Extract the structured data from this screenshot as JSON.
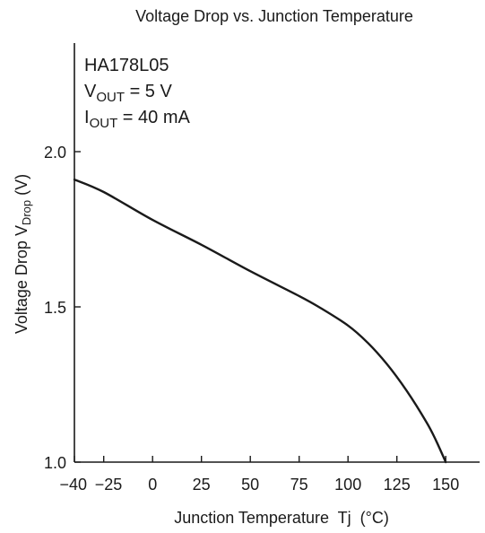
{
  "chart_data": {
    "type": "line",
    "title": "Voltage Drop vs. Junction Temperature",
    "xlabel": "Junction Temperature  Tj  (°C)",
    "ylabel": {
      "prefix": "Voltage Drop  V",
      "sub": "Drop",
      "suffix": "  (V)"
    },
    "xlim": [
      -40,
      162
    ],
    "ylim": [
      1.0,
      2.2
    ],
    "x_ticks": [
      {
        "value": -40,
        "label": "−40"
      },
      {
        "value": -25,
        "label": "−25"
      },
      {
        "value": 0,
        "label": "0"
      },
      {
        "value": 25,
        "label": "25"
      },
      {
        "value": 50,
        "label": "50"
      },
      {
        "value": 75,
        "label": "75"
      },
      {
        "value": 100,
        "label": "100"
      },
      {
        "value": 125,
        "label": "125"
      },
      {
        "value": 150,
        "label": "150"
      }
    ],
    "y_ticks": [
      {
        "value": 1.0,
        "label": "1.0"
      },
      {
        "value": 1.5,
        "label": "1.5"
      },
      {
        "value": 2.0,
        "label": "2.0"
      }
    ],
    "grid": false,
    "annotation": {
      "part": "HA178L05",
      "lines": [
        {
          "main": "V",
          "sub": "OUT",
          "rest": " = 5 V"
        },
        {
          "main": "I",
          "sub": "OUT",
          "rest": " = 40 mA"
        }
      ]
    },
    "series": [
      {
        "color": "#1a1a1a",
        "points": [
          [
            -40,
            1.91
          ],
          [
            -25,
            1.87
          ],
          [
            0,
            1.78
          ],
          [
            25,
            1.7
          ],
          [
            50,
            1.615
          ],
          [
            75,
            1.535
          ],
          [
            85,
            1.5
          ],
          [
            100,
            1.44
          ],
          [
            110,
            1.385
          ],
          [
            120,
            1.315
          ],
          [
            130,
            1.23
          ],
          [
            140,
            1.13
          ],
          [
            145,
            1.07
          ],
          [
            150,
            1.0
          ]
        ]
      }
    ]
  }
}
